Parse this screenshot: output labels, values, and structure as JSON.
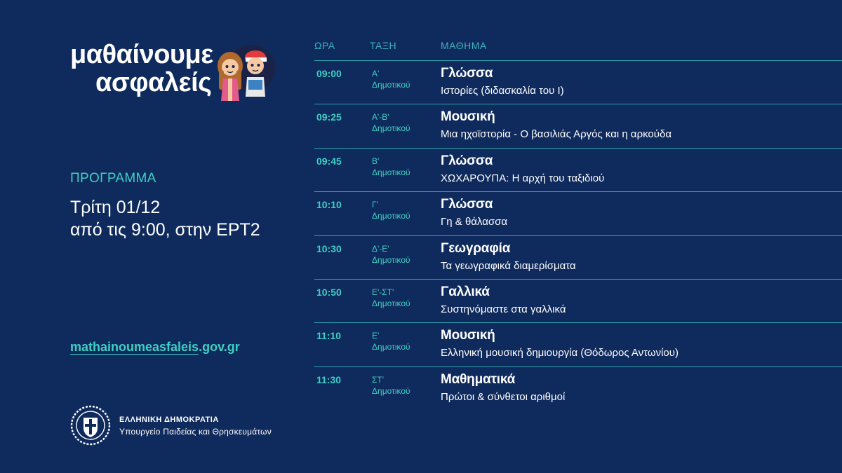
{
  "brand": {
    "line1": "μαθαίνουμε",
    "line2": "ασφαλείς"
  },
  "program": {
    "label": "ΠΡΟΓΡΑΜΜΑ",
    "date_line1": "Τρίτη 01/12",
    "date_line2": "από τις 9:00, στην ΕΡΤ2"
  },
  "website": {
    "underlined": "mathainoumeasfaleis",
    "rest": ".gov.gr"
  },
  "government": {
    "name": "ΕΛΛΗΝΙΚΗ ΔΗΜΟΚΡΑΤΙΑ",
    "ministry": "Υπουργείο Παιδείας και Θρησκευμάτων"
  },
  "schedule": {
    "headers": {
      "time": "ΩΡΑ",
      "grade": "ΤΑΞΗ",
      "subject": "ΜΑΘΗΜΑ"
    },
    "rows": [
      {
        "time": "09:00",
        "grade_line1": "Α'",
        "grade_line2": "Δημοτικού",
        "subject": "Γλώσσα",
        "topic": "Ιστορίες (διδασκαλία του Ι)"
      },
      {
        "time": "09:25",
        "grade_line1": "Α'-Β'",
        "grade_line2": "Δημοτικού",
        "subject": "Μουσική",
        "topic": "Μια ηχοϊστορία - Ο βασιλιάς Αργός και η αρκούδα"
      },
      {
        "time": "09:45",
        "grade_line1": "Β'",
        "grade_line2": "Δημοτικού",
        "subject": "Γλώσσα",
        "topic": "ΧΩΧΑΡΟΥΠΑ: Η αρχή του ταξιδιού"
      },
      {
        "time": "10:10",
        "grade_line1": "Γ'",
        "grade_line2": "Δημοτικού",
        "subject": "Γλώσσα",
        "topic": "Γη & θάλασσα"
      },
      {
        "time": "10:30",
        "grade_line1": "Δ'-Ε'",
        "grade_line2": "Δημοτικού",
        "subject": "Γεωγραφία",
        "topic": "Τα γεωγραφικά διαμερίσματα"
      },
      {
        "time": "10:50",
        "grade_line1": "Ε'-ΣΤ'",
        "grade_line2": "Δημοτικού",
        "subject": "Γαλλικά",
        "topic": "Συστηνόμαστε στα γαλλικά"
      },
      {
        "time": "11:10",
        "grade_line1": "Ε'",
        "grade_line2": "Δημοτικού",
        "subject": "Μουσική",
        "topic": "Ελληνική μουσική δημιουργία (Θόδωρος Αντωνίου)"
      },
      {
        "time": "11:30",
        "grade_line1": "ΣΤ'",
        "grade_line2": "Δημοτικού",
        "subject": "Μαθηματικά",
        "topic": "Πρώτοι & σύνθετοι αριθμοί"
      }
    ]
  },
  "colors": {
    "background": "#0f2a5c",
    "accent": "#3fd0c4",
    "divider": "#2ea4b0"
  },
  "icons": {
    "kids": "children-illustration",
    "emblem": "greek-coat-of-arms-icon"
  }
}
